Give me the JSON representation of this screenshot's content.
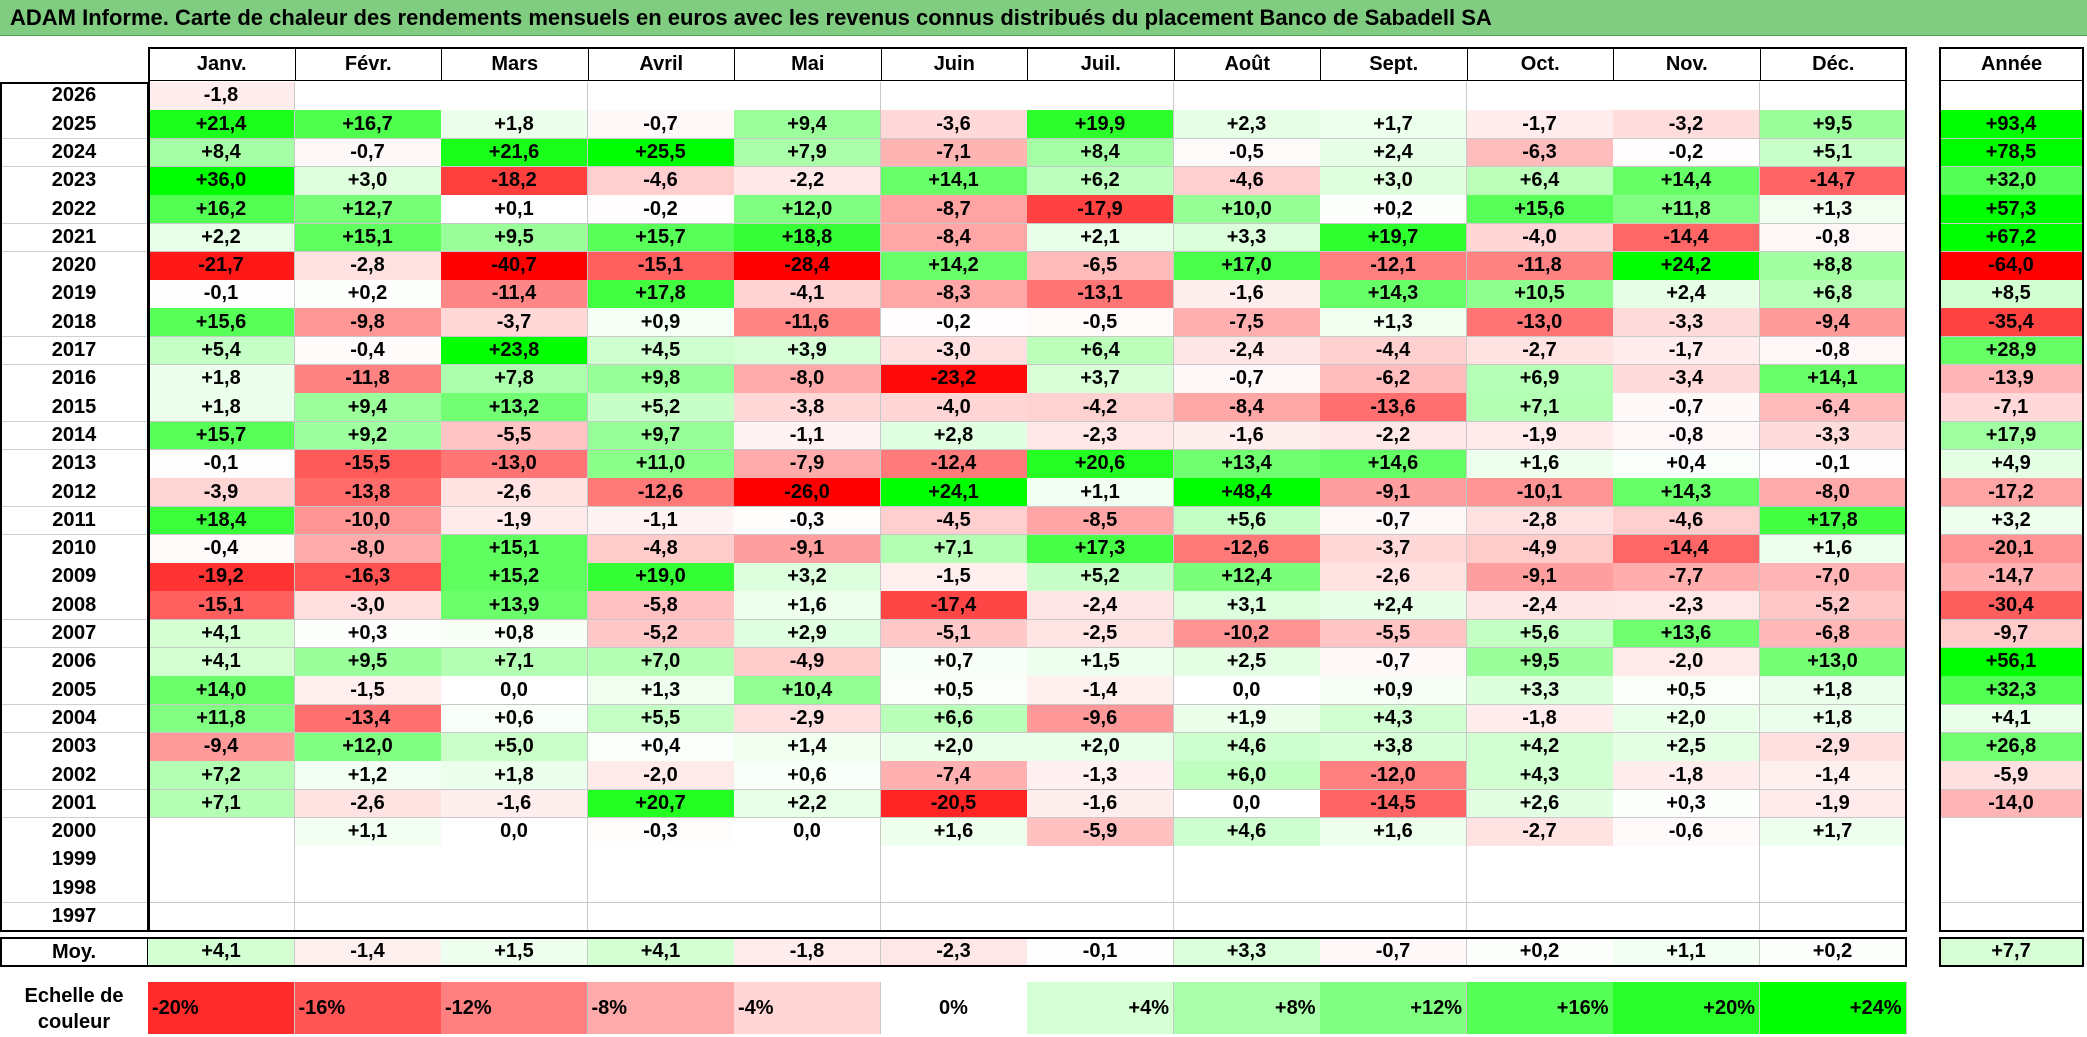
{
  "title": "ADAM Informe. Carte de chaleur des rendements mensuels en euros avec les revenus connus distribués du placement Banco de Sabadell SA",
  "colors": {
    "title_bar": "#80cc80",
    "negative": "#ff0000",
    "positive": "#00ff00",
    "neutral": "#ffffff"
  },
  "avg_label": "Moy.",
  "scale_label_lines": [
    "Echelle de",
    "couleur"
  ],
  "scale": [
    {
      "label": "-20%",
      "value": -20,
      "align": "left"
    },
    {
      "label": "-16%",
      "value": -16,
      "align": "left"
    },
    {
      "label": "-12%",
      "value": -12,
      "align": "left"
    },
    {
      "label": "-8%",
      "value": -8,
      "align": "left"
    },
    {
      "label": "-4%",
      "value": -4,
      "align": "left"
    },
    {
      "label": "0%",
      "value": 0,
      "align": "center"
    },
    {
      "label": "+4%",
      "value": 4,
      "align": "right"
    },
    {
      "label": "+8%",
      "value": 8,
      "align": "right"
    },
    {
      "label": "+12%",
      "value": 12,
      "align": "right"
    },
    {
      "label": "+16%",
      "value": 16,
      "align": "right"
    },
    {
      "label": "+20%",
      "value": 20,
      "align": "right"
    },
    {
      "label": "+24%",
      "value": 24,
      "align": "right"
    }
  ],
  "chart_data": {
    "type": "heatmap",
    "title": "ADAM Informe. Carte de chaleur des rendements mensuels en euros avec les revenus connus distribués du placement Banco de Sabadell SA",
    "columns": [
      "Janv.",
      "Févr.",
      "Mars",
      "Avril",
      "Mai",
      "Juin",
      "Juil.",
      "Août",
      "Sept.",
      "Oct.",
      "Nov.",
      "Déc."
    ],
    "annual_header": "Année",
    "rows": [
      {
        "year": "2026",
        "values": [
          "-1,8",
          "",
          "",
          "",
          "",
          "",
          "",
          "",
          "",
          "",
          "",
          ""
        ],
        "annual": ""
      },
      {
        "year": "2025",
        "values": [
          "+21,4",
          "+16,7",
          "+1,8",
          "-0,7",
          "+9,4",
          "-3,6",
          "+19,9",
          "+2,3",
          "+1,7",
          "-1,7",
          "-3,2",
          "+9,5"
        ],
        "annual": "+93,4"
      },
      {
        "year": "2024",
        "values": [
          "+8,4",
          "-0,7",
          "+21,6",
          "+25,5",
          "+7,9",
          "-7,1",
          "+8,4",
          "-0,5",
          "+2,4",
          "-6,3",
          "-0,2",
          "+5,1"
        ],
        "annual": "+78,5"
      },
      {
        "year": "2023",
        "values": [
          "+36,0",
          "+3,0",
          "-18,2",
          "-4,6",
          "-2,2",
          "+14,1",
          "+6,2",
          "-4,6",
          "+3,0",
          "+6,4",
          "+14,4",
          "-14,7"
        ],
        "annual": "+32,0"
      },
      {
        "year": "2022",
        "values": [
          "+16,2",
          "+12,7",
          "+0,1",
          "-0,2",
          "+12,0",
          "-8,7",
          "-17,9",
          "+10,0",
          "+0,2",
          "+15,6",
          "+11,8",
          "+1,3"
        ],
        "annual": "+57,3"
      },
      {
        "year": "2021",
        "values": [
          "+2,2",
          "+15,1",
          "+9,5",
          "+15,7",
          "+18,8",
          "-8,4",
          "+2,1",
          "+3,3",
          "+19,7",
          "-4,0",
          "-14,4",
          "-0,8"
        ],
        "annual": "+67,2"
      },
      {
        "year": "2020",
        "values": [
          "-21,7",
          "-2,8",
          "-40,7",
          "-15,1",
          "-28,4",
          "+14,2",
          "-6,5",
          "+17,0",
          "-12,1",
          "-11,8",
          "+24,2",
          "+8,8"
        ],
        "annual": "-64,0"
      },
      {
        "year": "2019",
        "values": [
          "-0,1",
          "+0,2",
          "-11,4",
          "+17,8",
          "-4,1",
          "-8,3",
          "-13,1",
          "-1,6",
          "+14,3",
          "+10,5",
          "+2,4",
          "+6,8"
        ],
        "annual": "+8,5"
      },
      {
        "year": "2018",
        "values": [
          "+15,6",
          "-9,8",
          "-3,7",
          "+0,9",
          "-11,6",
          "-0,2",
          "-0,5",
          "-7,5",
          "+1,3",
          "-13,0",
          "-3,3",
          "-9,4"
        ],
        "annual": "-35,4"
      },
      {
        "year": "2017",
        "values": [
          "+5,4",
          "-0,4",
          "+23,8",
          "+4,5",
          "+3,9",
          "-3,0",
          "+6,4",
          "-2,4",
          "-4,4",
          "-2,7",
          "-1,7",
          "-0,8"
        ],
        "annual": "+28,9"
      },
      {
        "year": "2016",
        "values": [
          "+1,8",
          "-11,8",
          "+7,8",
          "+9,8",
          "-8,0",
          "-23,2",
          "+3,7",
          "-0,7",
          "-6,2",
          "+6,9",
          "-3,4",
          "+14,1"
        ],
        "annual": "-13,9"
      },
      {
        "year": "2015",
        "values": [
          "+1,8",
          "+9,4",
          "+13,2",
          "+5,2",
          "-3,8",
          "-4,0",
          "-4,2",
          "-8,4",
          "-13,6",
          "+7,1",
          "-0,7",
          "-6,4"
        ],
        "annual": "-7,1"
      },
      {
        "year": "2014",
        "values": [
          "+15,7",
          "+9,2",
          "-5,5",
          "+9,7",
          "-1,1",
          "+2,8",
          "-2,3",
          "-1,6",
          "-2,2",
          "-1,9",
          "-0,8",
          "-3,3"
        ],
        "annual": "+17,9"
      },
      {
        "year": "2013",
        "values": [
          "-0,1",
          "-15,5",
          "-13,0",
          "+11,0",
          "-7,9",
          "-12,4",
          "+20,6",
          "+13,4",
          "+14,6",
          "+1,6",
          "+0,4",
          "-0,1"
        ],
        "annual": "+4,9"
      },
      {
        "year": "2012",
        "values": [
          "-3,9",
          "-13,8",
          "-2,6",
          "-12,6",
          "-26,0",
          "+24,1",
          "+1,1",
          "+48,4",
          "-9,1",
          "-10,1",
          "+14,3",
          "-8,0"
        ],
        "annual": "-17,2"
      },
      {
        "year": "2011",
        "values": [
          "+18,4",
          "-10,0",
          "-1,9",
          "-1,1",
          "-0,3",
          "-4,5",
          "-8,5",
          "+5,6",
          "-0,7",
          "-2,8",
          "-4,6",
          "+17,8"
        ],
        "annual": "+3,2"
      },
      {
        "year": "2010",
        "values": [
          "-0,4",
          "-8,0",
          "+15,1",
          "-4,8",
          "-9,1",
          "+7,1",
          "+17,3",
          "-12,6",
          "-3,7",
          "-4,9",
          "-14,4",
          "+1,6"
        ],
        "annual": "-20,1"
      },
      {
        "year": "2009",
        "values": [
          "-19,2",
          "-16,3",
          "+15,2",
          "+19,0",
          "+3,2",
          "-1,5",
          "+5,2",
          "+12,4",
          "-2,6",
          "-9,1",
          "-7,7",
          "-7,0"
        ],
        "annual": "-14,7"
      },
      {
        "year": "2008",
        "values": [
          "-15,1",
          "-3,0",
          "+13,9",
          "-5,8",
          "+1,6",
          "-17,4",
          "-2,4",
          "+3,1",
          "+2,4",
          "-2,4",
          "-2,3",
          "-5,2"
        ],
        "annual": "-30,4"
      },
      {
        "year": "2007",
        "values": [
          "+4,1",
          "+0,3",
          "+0,8",
          "-5,2",
          "+2,9",
          "-5,1",
          "-2,5",
          "-10,2",
          "-5,5",
          "+5,6",
          "+13,6",
          "-6,8"
        ],
        "annual": "-9,7"
      },
      {
        "year": "2006",
        "values": [
          "+4,1",
          "+9,5",
          "+7,1",
          "+7,0",
          "-4,9",
          "+0,7",
          "+1,5",
          "+2,5",
          "-0,7",
          "+9,5",
          "-2,0",
          "+13,0"
        ],
        "annual": "+56,1"
      },
      {
        "year": "2005",
        "values": [
          "+14,0",
          "-1,5",
          "0,0",
          "+1,3",
          "+10,4",
          "+0,5",
          "-1,4",
          "0,0",
          "+0,9",
          "+3,3",
          "+0,5",
          "+1,8"
        ],
        "annual": "+32,3"
      },
      {
        "year": "2004",
        "values": [
          "+11,8",
          "-13,4",
          "+0,6",
          "+5,5",
          "-2,9",
          "+6,6",
          "-9,6",
          "+1,9",
          "+4,3",
          "-1,8",
          "+2,0",
          "+1,8"
        ],
        "annual": "+4,1"
      },
      {
        "year": "2003",
        "values": [
          "-9,4",
          "+12,0",
          "+5,0",
          "+0,4",
          "+1,4",
          "+2,0",
          "+2,0",
          "+4,6",
          "+3,8",
          "+4,2",
          "+2,5",
          "-2,9"
        ],
        "annual": "+26,8"
      },
      {
        "year": "2002",
        "values": [
          "+7,2",
          "+1,2",
          "+1,8",
          "-2,0",
          "+0,6",
          "-7,4",
          "-1,3",
          "+6,0",
          "-12,0",
          "+4,3",
          "-1,8",
          "-1,4"
        ],
        "annual": "-5,9"
      },
      {
        "year": "2001",
        "values": [
          "+7,1",
          "-2,6",
          "-1,6",
          "+20,7",
          "+2,2",
          "-20,5",
          "-1,6",
          "0,0",
          "-14,5",
          "+2,6",
          "+0,3",
          "-1,9"
        ],
        "annual": "-14,0"
      },
      {
        "year": "2000",
        "values": [
          "",
          "+1,1",
          "0,0",
          "-0,3",
          "0,0",
          "+1,6",
          "-5,9",
          "+4,6",
          "+1,6",
          "-2,7",
          "-0,6",
          "+1,7"
        ],
        "annual": ""
      },
      {
        "year": "1999",
        "values": [
          "",
          "",
          "",
          "",
          "",
          "",
          "",
          "",
          "",
          "",
          "",
          ""
        ],
        "annual": ""
      },
      {
        "year": "1998",
        "values": [
          "",
          "",
          "",
          "",
          "",
          "",
          "",
          "",
          "",
          "",
          "",
          ""
        ],
        "annual": ""
      },
      {
        "year": "1997",
        "values": [
          "",
          "",
          "",
          "",
          "",
          "",
          "",
          "",
          "",
          "",
          "",
          ""
        ],
        "annual": ""
      }
    ],
    "average": {
      "values": [
        "+4,1",
        "-1,4",
        "+1,5",
        "+4,1",
        "-1,8",
        "-2,3",
        "-0,1",
        "+3,3",
        "-0,7",
        "+0,2",
        "+1,1",
        "+0,2"
      ],
      "annual": "+7,7"
    }
  }
}
